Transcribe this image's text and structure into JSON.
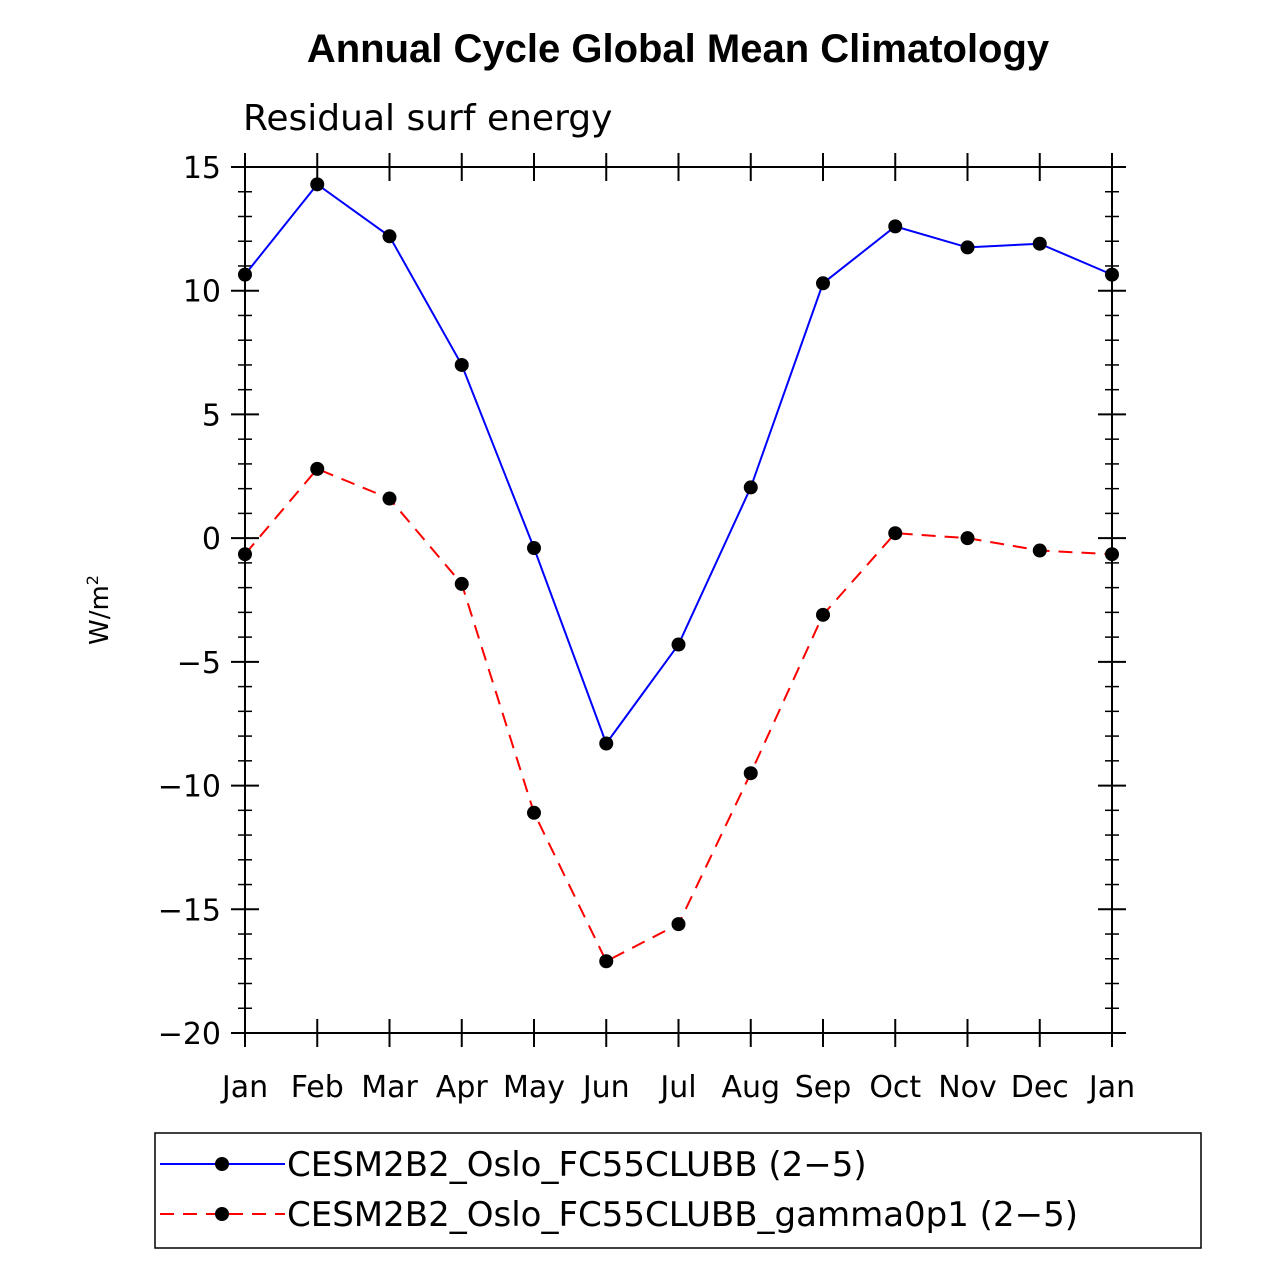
{
  "chart_data": {
    "type": "line",
    "title": "Annual Cycle Global Mean Climatology",
    "subtitle": "Residual surf energy",
    "ylabel": "W/m",
    "ylabel_superscript": "2",
    "ylim": [
      -20,
      15
    ],
    "yticks": [
      15,
      10,
      5,
      0,
      -5,
      -10,
      -15,
      -20
    ],
    "ytick_labels": [
      "15",
      "10",
      "5",
      "0",
      "−5",
      "−10",
      "−15",
      "−20"
    ],
    "categories": [
      "Jan",
      "Feb",
      "Mar",
      "Apr",
      "May",
      "Jun",
      "Jul",
      "Aug",
      "Sep",
      "Oct",
      "Nov",
      "Dec",
      "Jan"
    ],
    "series": [
      {
        "name": "CESM2B2_Oslo_FC55CLUBB (2−5)",
        "color": "#0000ff",
        "dash": "solid",
        "values": [
          10.65,
          14.3,
          12.2,
          7.0,
          -0.4,
          -8.3,
          -4.3,
          2.05,
          10.3,
          12.6,
          11.75,
          11.9,
          10.65
        ]
      },
      {
        "name": "CESM2B2_Oslo_FC55CLUBB_gamma0p1 (2−5)",
        "color": "#ff0000",
        "dash": "dashed",
        "values": [
          -0.65,
          2.8,
          1.6,
          -1.85,
          -11.1,
          -17.1,
          -15.6,
          -9.5,
          -3.1,
          0.2,
          0.0,
          -0.5,
          -0.65
        ]
      }
    ],
    "marker_color": "#000000",
    "legend_position": "bottom"
  }
}
